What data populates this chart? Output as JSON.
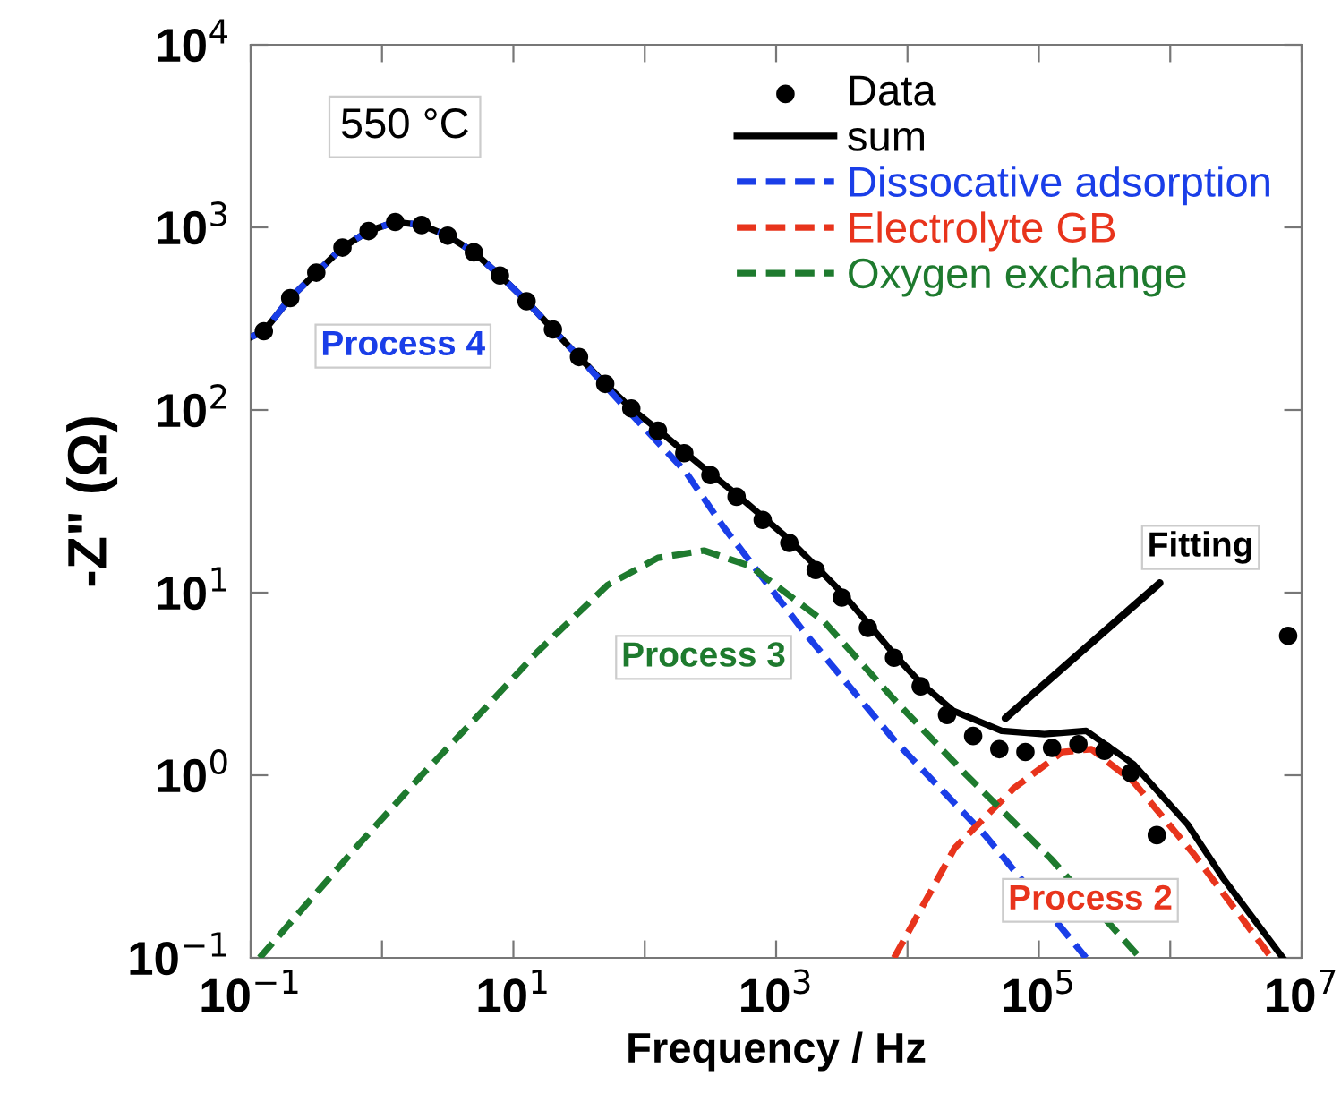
{
  "chart_data": {
    "type": "line",
    "xlabel": "Frequency / Hz",
    "ylabel": "-Z\" (Ω)",
    "log": "xy",
    "grid": false,
    "legend": "top right",
    "xlim": [
      0.1,
      10000000
    ],
    "ylim": [
      0.1,
      10000
    ],
    "xticks": [
      {
        "value": 0.1,
        "label": "10$^{−1}$"
      },
      {
        "value": 1,
        "label": null
      },
      {
        "value": 10,
        "label": "10$^{1}$"
      },
      {
        "value": 100,
        "label": null
      },
      {
        "value": 1000,
        "label": "10$^{3}$"
      },
      {
        "value": 10000,
        "label": null
      },
      {
        "value": 100000,
        "label": "10$^{5}$"
      },
      {
        "value": 1000000,
        "label": null
      },
      {
        "value": 10000000,
        "label": "10$^{7}$"
      }
    ],
    "yticks": [
      {
        "value": 0.1,
        "label": "10$^{−1}$"
      },
      {
        "value": 1,
        "label": "10$^{0}$"
      },
      {
        "value": 10,
        "label": "10$^{1}$"
      },
      {
        "value": 100,
        "label": "10$^{2}$"
      },
      {
        "value": 1000,
        "label": "10$^{3}$"
      },
      {
        "value": 10000,
        "label": "10$^{4}$"
      }
    ],
    "annotations": [
      "550 °C",
      "Process 4",
      "Process 3",
      "Process 2",
      {
        "text": "Fitting",
        "x": 52000,
        "y": 1.97
      }
    ],
    "series": [
      {
        "name": "Data",
        "type": "scatter",
        "marker": "circle",
        "color": "#000000",
        "x": [
          0.126,
          0.2,
          0.316,
          0.5,
          0.79,
          1.26,
          2,
          3.16,
          5,
          7.9,
          12.6,
          20,
          31.6,
          50,
          79,
          126,
          200,
          316,
          500,
          790,
          1260,
          2000,
          3160,
          5000,
          7900,
          12600,
          20000,
          31600,
          50000,
          79000,
          126000,
          200000,
          316000,
          500000,
          790000,
          7900000
        ],
        "values": [
          270,
          410,
          565,
          775,
          955,
          1070,
          1030,
          900,
          730,
          545,
          394,
          276,
          195,
          139,
          102,
          77,
          58,
          44,
          33.5,
          25,
          18.7,
          13.3,
          9.4,
          6.4,
          4.4,
          3.07,
          2.14,
          1.64,
          1.39,
          1.34,
          1.41,
          1.48,
          1.36,
          1.03,
          0.47,
          5.8
        ]
      },
      {
        "name": "sum",
        "line_style": "solid",
        "color": "#000000",
        "x": [
          0.1,
          0.126,
          0.2,
          0.316,
          0.5,
          0.79,
          1.26,
          2,
          3.16,
          5,
          7.9,
          12.6,
          20,
          31.6,
          50,
          79,
          126,
          200,
          316,
          500,
          790,
          1260,
          2000,
          3160,
          5000,
          7900,
          12600,
          22400,
          52000,
          110000,
          229000,
          525000,
          1350000,
          2500000,
          7200000
        ],
        "values": [
          250,
          270,
          410,
          565,
          775,
          955,
          1070,
          1030,
          900,
          730,
          545,
          394,
          276,
          195,
          139,
          102,
          78,
          59,
          45,
          34.5,
          26,
          19.5,
          14,
          10,
          6.8,
          4.6,
          3.2,
          2.25,
          1.75,
          1.68,
          1.75,
          1.15,
          0.54,
          0.276,
          0.1
        ]
      },
      {
        "name": "Dissocative adsorption",
        "line_style": "dashed",
        "color": "#1a3ee8",
        "x": [
          0.1,
          0.126,
          0.2,
          0.316,
          0.5,
          0.79,
          1.26,
          2,
          3.16,
          5,
          7.9,
          12.6,
          20,
          31.6,
          72,
          204,
          389,
          1660,
          7900,
          38900,
          229000
        ],
        "values": [
          250,
          270,
          410,
          565,
          775,
          955,
          1070,
          1030,
          900,
          730,
          545,
          394,
          276,
          195,
          102,
          46,
          23.4,
          6.0,
          1.56,
          0.47,
          0.1
        ]
      },
      {
        "name": "Electrolyte GB",
        "line_style": "dashed",
        "color": "#e8341c",
        "x": [
          7900,
          22900,
          64600,
          151000,
          251000,
          525000,
          1510000,
          5900000
        ],
        "values": [
          0.1,
          0.4,
          0.85,
          1.34,
          1.39,
          0.92,
          0.37,
          0.1
        ]
      },
      {
        "name": "Oxygen exchange",
        "line_style": "dashed",
        "color": "#1e7a2e",
        "x": [
          0.117,
          0.63,
          2,
          5,
          15.1,
          52,
          126,
          282,
          631,
          2290,
          7900,
          28200,
          123000,
          589000
        ],
        "values": [
          0.1,
          0.4,
          1.0,
          2.0,
          4.7,
          11,
          15.5,
          17,
          14,
          7.0,
          2.6,
          1.0,
          0.35,
          0.1
        ]
      }
    ]
  }
}
